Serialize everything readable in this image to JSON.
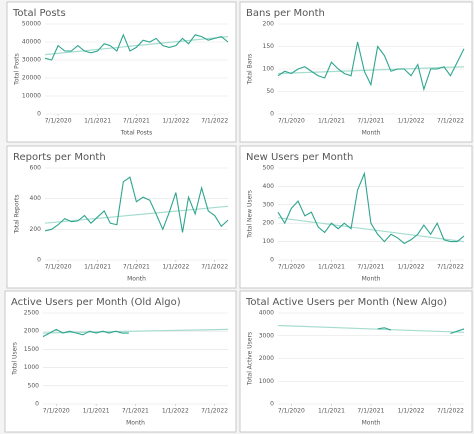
{
  "chart_data": [
    {
      "type": "line",
      "title": "Total Posts",
      "y_label": "Total Posts",
      "x_label": "Total Posts",
      "x": [
        "2020-05-01",
        "2020-06-01",
        "2020-07-01",
        "2020-08-01",
        "2020-09-01",
        "2020-10-01",
        "2020-11-01",
        "2020-12-01",
        "2021-01-01",
        "2021-02-01",
        "2021-03-01",
        "2021-04-01",
        "2021-05-01",
        "2021-06-01",
        "2021-07-01",
        "2021-08-01",
        "2021-09-01",
        "2021-10-01",
        "2021-11-01",
        "2021-12-01",
        "2022-01-01",
        "2022-02-01",
        "2022-03-01",
        "2022-04-01",
        "2022-05-01",
        "2022-06-01",
        "2022-07-01",
        "2022-08-01",
        "2022-09-01"
      ],
      "values": [
        31000,
        30000,
        38000,
        35000,
        35000,
        38000,
        35000,
        34000,
        35000,
        39000,
        38000,
        35000,
        44000,
        35000,
        37000,
        41000,
        40000,
        42000,
        38000,
        37000,
        38000,
        42000,
        39000,
        44000,
        43000,
        41000,
        42000,
        43000,
        40000
      ],
      "color": "#2fa58f",
      "trend": {
        "values": [
          33000,
          43000
        ],
        "color": "#a6dccf"
      },
      "xlim": [
        "2020-05-01",
        "2022-09-01"
      ],
      "xticks": [
        {
          "value": "2020-07-01",
          "label": "7/1/2020"
        },
        {
          "value": "2021-01-01",
          "label": "1/1/2021"
        },
        {
          "value": "2021-07-01",
          "label": "7/1/2021"
        },
        {
          "value": "2022-01-01",
          "label": "1/1/2022"
        },
        {
          "value": "2022-07-01",
          "label": "7/1/2022"
        }
      ],
      "ylim": [
        0,
        50000
      ],
      "yticks": [
        0,
        10000,
        20000,
        30000,
        40000,
        50000
      ],
      "grid": true
    },
    {
      "type": "line",
      "title": "Bans per Month",
      "y_label": "Total Bans",
      "x_label": "Month",
      "x": [
        "2020-05-01",
        "2020-06-01",
        "2020-07-01",
        "2020-08-01",
        "2020-09-01",
        "2020-10-01",
        "2020-11-01",
        "2020-12-01",
        "2021-01-01",
        "2021-02-01",
        "2021-03-01",
        "2021-04-01",
        "2021-05-01",
        "2021-06-01",
        "2021-07-01",
        "2021-08-01",
        "2021-09-01",
        "2021-10-01",
        "2021-11-01",
        "2021-12-01",
        "2022-01-01",
        "2022-02-01",
        "2022-03-01",
        "2022-04-01",
        "2022-05-01",
        "2022-06-01",
        "2022-07-01",
        "2022-08-01",
        "2022-09-01"
      ],
      "values": [
        85,
        95,
        90,
        100,
        105,
        95,
        85,
        80,
        115,
        100,
        90,
        85,
        160,
        95,
        65,
        150,
        130,
        95,
        100,
        100,
        85,
        110,
        55,
        100,
        100,
        105,
        85,
        115,
        145
      ],
      "color": "#2fa58f",
      "trend": {
        "values": [
          90,
          105
        ],
        "color": "#a6dccf"
      },
      "xlim": [
        "2020-05-01",
        "2022-09-01"
      ],
      "xticks": [
        {
          "value": "2020-07-01",
          "label": "7/1/2020"
        },
        {
          "value": "2021-01-01",
          "label": "1/1/2021"
        },
        {
          "value": "2021-07-01",
          "label": "7/1/2021"
        },
        {
          "value": "2022-01-01",
          "label": "1/1/2022"
        },
        {
          "value": "2022-07-01",
          "label": "7/1/2022"
        }
      ],
      "ylim": [
        0,
        200
      ],
      "yticks": [
        0,
        50,
        100,
        150,
        200
      ],
      "grid": true
    },
    {
      "type": "line",
      "title": "Reports per Month",
      "y_label": "Total Reports",
      "x_label": "Month",
      "x": [
        "2020-05-01",
        "2020-06-01",
        "2020-07-01",
        "2020-08-01",
        "2020-09-01",
        "2020-10-01",
        "2020-11-01",
        "2020-12-01",
        "2021-01-01",
        "2021-02-01",
        "2021-03-01",
        "2021-04-01",
        "2021-05-01",
        "2021-06-01",
        "2021-07-01",
        "2021-08-01",
        "2021-09-01",
        "2021-10-01",
        "2021-11-01",
        "2021-12-01",
        "2022-01-01",
        "2022-02-01",
        "2022-03-01",
        "2022-04-01",
        "2022-05-01",
        "2022-06-01",
        "2022-07-01",
        "2022-08-01",
        "2022-09-01"
      ],
      "values": [
        190,
        200,
        230,
        270,
        250,
        255,
        290,
        240,
        280,
        320,
        240,
        230,
        510,
        540,
        380,
        410,
        390,
        300,
        200,
        310,
        440,
        180,
        410,
        300,
        470,
        320,
        290,
        220,
        260
      ],
      "color": "#2fa58f",
      "trend": {
        "values": [
          240,
          350
        ],
        "color": "#a6dccf"
      },
      "xlim": [
        "2020-05-01",
        "2022-09-01"
      ],
      "xticks": [
        {
          "value": "2020-07-01",
          "label": "7/1/2020"
        },
        {
          "value": "2021-01-01",
          "label": "1/1/2021"
        },
        {
          "value": "2021-07-01",
          "label": "7/1/2021"
        },
        {
          "value": "2022-01-01",
          "label": "1/1/2022"
        },
        {
          "value": "2022-07-01",
          "label": "7/1/2022"
        }
      ],
      "ylim": [
        0,
        600
      ],
      "yticks": [
        0,
        200,
        400,
        600
      ],
      "grid": true
    },
    {
      "type": "line",
      "title": "New Users per Month",
      "y_label": "Total New Users",
      "x_label": "Month",
      "x": [
        "2020-05-01",
        "2020-06-01",
        "2020-07-01",
        "2020-08-01",
        "2020-09-01",
        "2020-10-01",
        "2020-11-01",
        "2020-12-01",
        "2021-01-01",
        "2021-02-01",
        "2021-03-01",
        "2021-04-01",
        "2021-05-01",
        "2021-06-01",
        "2021-07-01",
        "2021-08-01",
        "2021-09-01",
        "2021-10-01",
        "2021-11-01",
        "2021-12-01",
        "2022-01-01",
        "2022-02-01",
        "2022-03-01",
        "2022-04-01",
        "2022-05-01",
        "2022-06-01",
        "2022-07-01",
        "2022-08-01",
        "2022-09-01"
      ],
      "values": [
        260,
        200,
        280,
        320,
        240,
        260,
        180,
        150,
        200,
        170,
        200,
        170,
        380,
        470,
        200,
        140,
        100,
        140,
        120,
        90,
        110,
        140,
        190,
        140,
        200,
        110,
        100,
        100,
        130
      ],
      "color": "#2fa58f",
      "trend": {
        "values": [
          230,
          100
        ],
        "color": "#a6dccf"
      },
      "xlim": [
        "2020-05-01",
        "2022-09-01"
      ],
      "xticks": [
        {
          "value": "2020-07-01",
          "label": "7/1/2020"
        },
        {
          "value": "2021-01-01",
          "label": "1/1/2021"
        },
        {
          "value": "2021-07-01",
          "label": "7/1/2021"
        },
        {
          "value": "2022-01-01",
          "label": "1/1/2022"
        },
        {
          "value": "2022-07-01",
          "label": "7/1/2022"
        }
      ],
      "ylim": [
        0,
        500
      ],
      "yticks": [
        0,
        100,
        200,
        300,
        400,
        500
      ],
      "grid": true
    },
    {
      "type": "line",
      "title": "Active Users per Month (Old Algo)",
      "y_label": "Total Users",
      "x_label": "Month",
      "x": [
        "2020-05-01",
        "2020-06-01",
        "2020-07-01",
        "2020-08-01",
        "2020-09-01",
        "2020-10-01",
        "2020-11-01",
        "2020-12-01",
        "2021-01-01",
        "2021-02-01",
        "2021-03-01",
        "2021-04-01",
        "2021-05-01",
        "2021-06-01",
        "2021-07-01",
        "2021-08-01",
        "2021-09-01",
        "2021-10-01",
        "2021-11-01",
        "2021-12-01",
        "2022-01-01",
        "2022-02-01",
        "2022-03-01",
        "2022-04-01",
        "2022-05-01",
        "2022-06-01",
        "2022-07-01",
        "2022-08-01",
        "2022-09-01"
      ],
      "values": [
        1850,
        1950,
        2050,
        1950,
        2000,
        1950,
        1900,
        2000,
        1950,
        2000,
        1950,
        2000,
        1950,
        1950,
        null,
        null,
        null,
        null,
        null,
        null,
        null,
        null,
        null,
        null,
        null,
        null,
        null,
        null,
        null
      ],
      "color": "#2fa58f",
      "trend": {
        "values": [
          1950,
          2050
        ],
        "color": "#a6dccf"
      },
      "xlim": [
        "2020-05-01",
        "2022-09-01"
      ],
      "xticks": [
        {
          "value": "2020-07-01",
          "label": "7/1/2020"
        },
        {
          "value": "2021-01-01",
          "label": "1/1/2021"
        },
        {
          "value": "2021-07-01",
          "label": "7/1/2021"
        },
        {
          "value": "2022-01-01",
          "label": "1/1/2022"
        },
        {
          "value": "2022-07-01",
          "label": "7/1/2022"
        }
      ],
      "ylim": [
        0,
        2500
      ],
      "yticks": [
        0,
        500,
        1000,
        1500,
        2000,
        2500
      ],
      "grid": true
    },
    {
      "type": "line",
      "title": "Total Active Users per Month (New Algo)",
      "y_label": "Total Active Users",
      "x_label": "Month",
      "x": [
        "2020-05-01",
        "2020-06-01",
        "2020-07-01",
        "2020-08-01",
        "2020-09-01",
        "2020-10-01",
        "2020-11-01",
        "2020-12-01",
        "2021-01-01",
        "2021-02-01",
        "2021-03-01",
        "2021-04-01",
        "2021-05-01",
        "2021-06-01",
        "2021-07-01",
        "2021-08-01",
        "2021-09-01",
        "2021-10-01",
        "2021-11-01",
        "2021-12-01",
        "2022-01-01",
        "2022-02-01",
        "2022-03-01",
        "2022-04-01",
        "2022-05-01",
        "2022-06-01",
        "2022-07-01",
        "2022-08-01",
        "2022-09-01"
      ],
      "values": [
        null,
        null,
        null,
        null,
        null,
        null,
        null,
        null,
        null,
        null,
        null,
        null,
        null,
        null,
        null,
        3300,
        3350,
        3250,
        null,
        null,
        null,
        null,
        null,
        null,
        null,
        null,
        3100,
        3200,
        3300
      ],
      "color": "#2fa58f",
      "trend": {
        "values": [
          3450,
          3150
        ],
        "color": "#a6dccf"
      },
      "xlim": [
        "2020-05-01",
        "2022-09-01"
      ],
      "xticks": [
        {
          "value": "2020-07-01",
          "label": "7/1/2020"
        },
        {
          "value": "2021-01-01",
          "label": "1/1/2021"
        },
        {
          "value": "2021-07-01",
          "label": "7/1/2021"
        },
        {
          "value": "2022-01-01",
          "label": "1/1/2022"
        },
        {
          "value": "2022-07-01",
          "label": "7/1/2022"
        }
      ],
      "ylim": [
        0,
        4000
      ],
      "yticks": [
        0,
        1000,
        2000,
        3000,
        4000
      ],
      "grid": true
    }
  ]
}
